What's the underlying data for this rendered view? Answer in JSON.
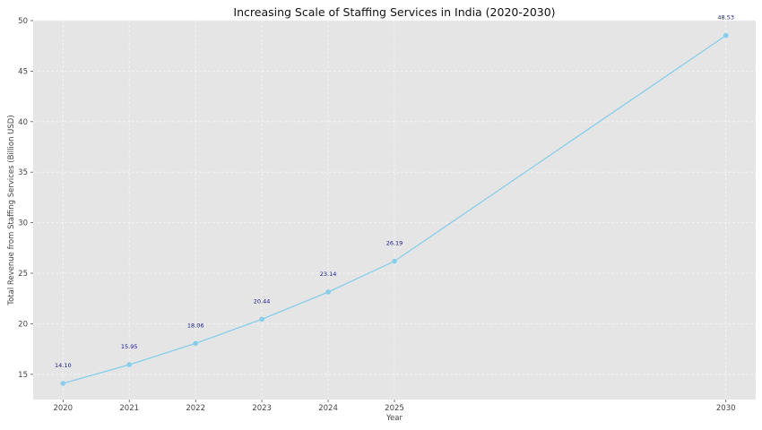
{
  "chart_data": {
    "type": "line",
    "title": "Increasing Scale of Staffing Services in India (2020-2030)",
    "xlabel": "Year",
    "ylabel": "Total Revenue from Staffing Services (Billion USD)",
    "x": [
      2020,
      2021,
      2022,
      2023,
      2024,
      2025,
      2030
    ],
    "x_tick_labels": [
      "2020",
      "2021",
      "2022",
      "2023",
      "2024",
      "2025",
      "2030"
    ],
    "series": [
      {
        "name": "Total Revenue",
        "values": [
          14.1,
          15.95,
          18.06,
          20.44,
          23.14,
          26.19,
          48.53
        ],
        "labels": [
          "14.10",
          "15.95",
          "18.06",
          "20.44",
          "23.14",
          "26.19",
          "48.53"
        ]
      }
    ],
    "y_ticks": [
      15,
      20,
      25,
      30,
      35,
      40,
      45,
      50
    ],
    "y_tick_labels": [
      "15",
      "20",
      "25",
      "30",
      "35",
      "40",
      "45",
      "50"
    ],
    "ylim": [
      12.5,
      50
    ],
    "xlim": [
      2019.55,
      2030.45
    ],
    "grid": true,
    "colors": {
      "line": "#87ceeb",
      "marker": "#87ceeb",
      "label": "#1a1a8c",
      "background": "#e5e5e5",
      "grid": "#f5f5f5"
    }
  }
}
